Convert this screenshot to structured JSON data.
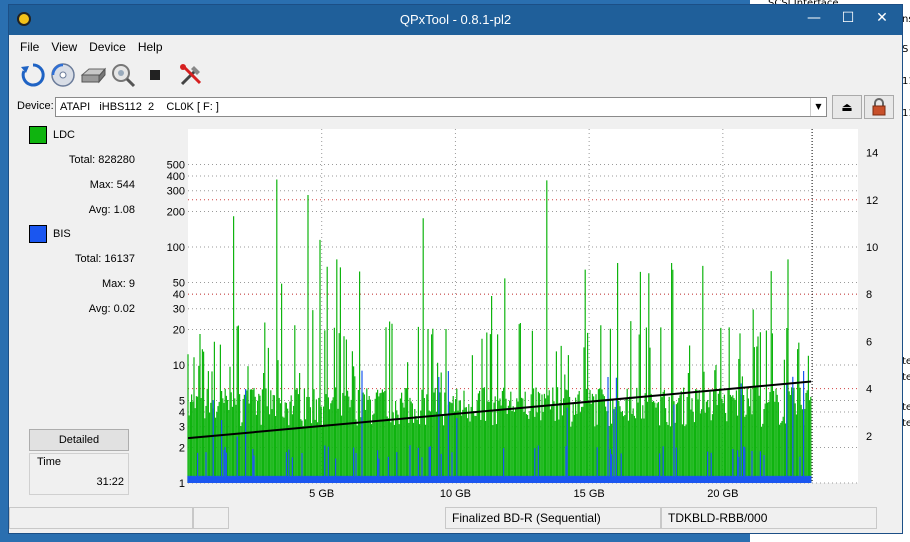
{
  "background_app": {
    "lines": [
      "SCSI Interface",
      "ns",
      "S",
      "11",
      "11",
      "te",
      "te",
      "te",
      "te"
    ]
  },
  "titlebar": {
    "title": "QPxTool - 0.8.1-pl2",
    "minimize": "—",
    "maximize": "☐",
    "close": "✕"
  },
  "menu": [
    "File",
    "View",
    "Device",
    "Help"
  ],
  "toolbar": {
    "icons": [
      "refresh-icon",
      "disc-icon",
      "drive-icon",
      "scan-icon",
      "stop-icon",
      "settings-icon"
    ]
  },
  "device": {
    "label": "Device:",
    "value": "ATAPI   iHBS112  2    CL0K [ F: ]",
    "eject": "⏏",
    "lock": "🔒"
  },
  "legend": {
    "ldc": {
      "name": "LDC",
      "color": "#0fb40f",
      "total_label": "Total:",
      "total": "828280",
      "max_label": "Max:",
      "max": "544",
      "avg_label": "Avg:",
      "avg": "1.08"
    },
    "bis": {
      "name": "BIS",
      "color": "#1a56f0",
      "total_label": "Total:",
      "total": "16137",
      "max_label": "Max:",
      "max": "9",
      "avg_label": "Avg:",
      "avg": "0.02"
    }
  },
  "detailed_label": "Detailed",
  "time": {
    "label": "Time",
    "value": "31:22"
  },
  "status": [
    "",
    "",
    "Finalized BD-R (Sequential)",
    "TDKBLD-RBB/000"
  ],
  "chart_data": {
    "type": "area",
    "x_unit": "GB",
    "xlim": [
      0,
      23.3
    ],
    "x_ticks": [
      5,
      10,
      15,
      20
    ],
    "x_tick_labels": [
      "5 GB",
      "10 GB",
      "15 GB",
      "20 GB"
    ],
    "y_left_scale": "log",
    "ylim_left": [
      1,
      1000
    ],
    "y_left_ticks": [
      1,
      2,
      3,
      4,
      5,
      10,
      20,
      30,
      40,
      50,
      100,
      200,
      300,
      400,
      500
    ],
    "ylim_right": [
      0,
      15
    ],
    "y_right_ticks": [
      2,
      4,
      6,
      8,
      10,
      12,
      14
    ],
    "grid": true,
    "series": [
      {
        "name": "LDC",
        "color": "#0fb40f",
        "baseline": 5,
        "peak_max": 544
      },
      {
        "name": "BIS",
        "color": "#1a56f0",
        "baseline": 1,
        "peak_max": 9
      },
      {
        "name": "",
        "color": "#000000",
        "axis": "right",
        "x": [
          0,
          23.3
        ],
        "y": [
          1.9,
          4.3
        ]
      }
    ]
  }
}
